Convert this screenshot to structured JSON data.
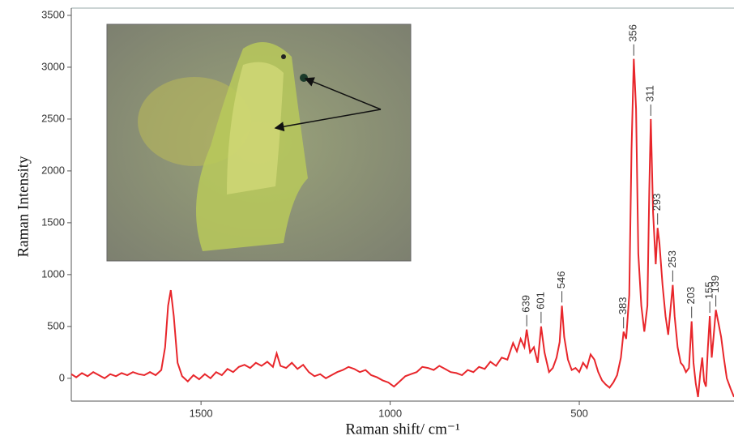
{
  "chart_data": {
    "type": "line",
    "x_label": "Raman shift/ cm⁻¹",
    "y_label": "Raman Intensity",
    "xlim": [
      1843,
      91
    ],
    "ylim": [
      -220,
      3570
    ],
    "xticks": [
      1500,
      1000,
      500
    ],
    "yticks": [
      0,
      500,
      1000,
      1500,
      2000,
      2500,
      3000,
      3500
    ],
    "color": "#e8262b",
    "peaks": [
      356,
      311,
      293,
      253,
      203,
      155,
      139,
      383,
      546,
      601,
      639
    ],
    "x": [
      1843,
      1830,
      1815,
      1800,
      1785,
      1770,
      1755,
      1740,
      1725,
      1710,
      1695,
      1680,
      1665,
      1650,
      1635,
      1620,
      1605,
      1595,
      1587,
      1580,
      1572,
      1562,
      1550,
      1535,
      1520,
      1505,
      1490,
      1475,
      1460,
      1445,
      1430,
      1415,
      1400,
      1385,
      1370,
      1355,
      1340,
      1325,
      1310,
      1300,
      1290,
      1275,
      1260,
      1245,
      1230,
      1215,
      1200,
      1185,
      1170,
      1155,
      1140,
      1125,
      1110,
      1095,
      1080,
      1065,
      1050,
      1035,
      1020,
      1005,
      990,
      975,
      960,
      945,
      930,
      915,
      900,
      885,
      870,
      855,
      840,
      825,
      810,
      795,
      780,
      765,
      750,
      735,
      720,
      705,
      690,
      675,
      665,
      655,
      645,
      639,
      630,
      620,
      610,
      601,
      592,
      580,
      570,
      560,
      552,
      546,
      540,
      530,
      520,
      510,
      500,
      490,
      480,
      470,
      460,
      450,
      440,
      430,
      420,
      410,
      400,
      390,
      383,
      376,
      368,
      362,
      356,
      350,
      344,
      336,
      328,
      320,
      315,
      311,
      305,
      298,
      293,
      288,
      280,
      272,
      265,
      258,
      253,
      248,
      240,
      232,
      225,
      218,
      210,
      203,
      198,
      192,
      186,
      180,
      175,
      170,
      165,
      160,
      155,
      150,
      145,
      139,
      133,
      125,
      118,
      110,
      100,
      91
    ],
    "values": [
      40,
      10,
      50,
      20,
      60,
      30,
      0,
      40,
      20,
      50,
      30,
      60,
      40,
      30,
      60,
      30,
      80,
      300,
      700,
      850,
      600,
      150,
      20,
      -30,
      30,
      -10,
      40,
      0,
      60,
      30,
      90,
      60,
      110,
      130,
      100,
      150,
      120,
      160,
      110,
      240,
      120,
      100,
      150,
      90,
      130,
      60,
      20,
      40,
      0,
      30,
      60,
      80,
      110,
      90,
      60,
      80,
      30,
      10,
      -20,
      -40,
      -80,
      -30,
      20,
      40,
      60,
      110,
      100,
      80,
      120,
      90,
      60,
      50,
      30,
      80,
      60,
      110,
      90,
      160,
      120,
      200,
      180,
      340,
      260,
      380,
      300,
      470,
      250,
      300,
      150,
      500,
      250,
      60,
      100,
      200,
      350,
      700,
      400,
      180,
      80,
      100,
      60,
      150,
      100,
      230,
      180,
      60,
      -20,
      -60,
      -90,
      -40,
      30,
      200,
      450,
      380,
      800,
      2200,
      3080,
      2600,
      1200,
      700,
      450,
      700,
      1800,
      2500,
      1600,
      1100,
      1450,
      1300,
      900,
      600,
      420,
      700,
      900,
      600,
      300,
      150,
      120,
      60,
      100,
      550,
      150,
      -50,
      -180,
      50,
      200,
      -30,
      -80,
      300,
      600,
      200,
      400,
      660,
      550,
      400,
      200,
      0,
      -100,
      -180
    ]
  }
}
